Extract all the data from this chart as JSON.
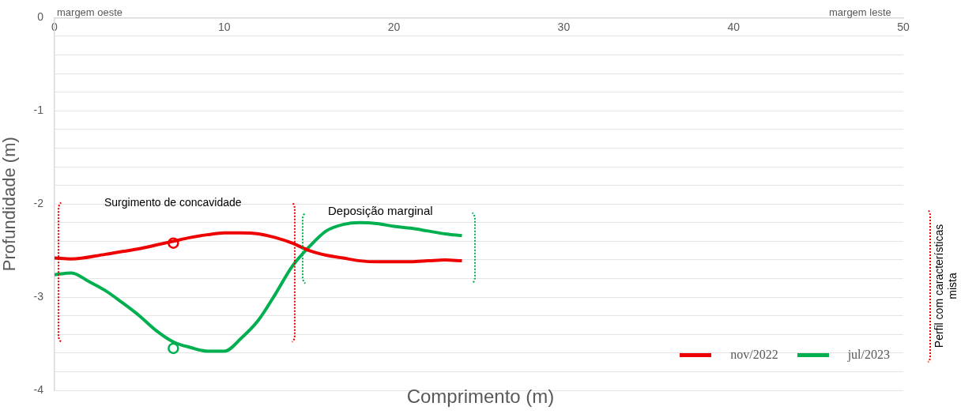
{
  "chart_data": {
    "type": "line",
    "xlabel": "Comprimento (m)",
    "ylabel": "Profundidade (m)",
    "xlim": [
      0,
      50
    ],
    "xticks": [
      0,
      10,
      20,
      30,
      40,
      50
    ],
    "ylim": [
      -4,
      0
    ],
    "yticks": [
      -4,
      {
        "value": -3.8,
        "label": null
      },
      {
        "value": -3.6,
        "label": null
      },
      {
        "value": -3.4,
        "label": null
      },
      {
        "value": -3.2,
        "label": null
      },
      -3,
      {
        "value": -2.8,
        "label": null
      },
      {
        "value": -2.6,
        "label": null
      },
      {
        "value": -2.4,
        "label": null
      },
      {
        "value": -2.2,
        "label": null
      },
      -2,
      {
        "value": -1.8,
        "label": null
      },
      {
        "value": -1.6,
        "label": null
      },
      {
        "value": -1.4,
        "label": null
      },
      {
        "value": -1.2,
        "label": null
      },
      -1,
      {
        "value": -0.8,
        "label": null
      },
      {
        "value": -0.6,
        "label": null
      },
      {
        "value": -0.4,
        "label": null
      },
      {
        "value": -0.2,
        "label": null
      },
      0
    ],
    "grid": "y",
    "legend": "bottom right",
    "line_style": "solid",
    "marker": "none",
    "series": [
      {
        "name": "nov/2022",
        "color": "#ee0000",
        "x": [
          0,
          1,
          3,
          4,
          5,
          6,
          7,
          8,
          9,
          10,
          11,
          12,
          13,
          14,
          15,
          16,
          17,
          18,
          19,
          20,
          21,
          22,
          23,
          24
        ],
        "values": [
          -2.58,
          -2.59,
          -2.54,
          -2.51,
          -2.48,
          -2.44,
          -2.4,
          -2.36,
          -2.33,
          -2.31,
          -2.31,
          -2.32,
          -2.36,
          -2.42,
          -2.5,
          -2.55,
          -2.58,
          -2.61,
          -2.62,
          -2.62,
          -2.62,
          -2.61,
          -2.6,
          -2.61
        ]
      },
      {
        "name": "jul/2023",
        "color": "#00b050",
        "x": [
          0,
          1,
          2,
          3,
          4,
          5,
          6,
          7,
          8,
          9,
          10,
          11,
          12,
          13,
          14,
          15,
          16,
          17,
          18,
          19,
          20,
          21,
          22,
          23,
          24
        ],
        "values": [
          -2.76,
          -2.74,
          -2.83,
          -2.93,
          -3.06,
          -3.2,
          -3.36,
          -3.48,
          -3.54,
          -3.58,
          -3.58,
          -3.44,
          -3.25,
          -2.97,
          -2.67,
          -2.46,
          -2.29,
          -2.22,
          -2.2,
          -2.21,
          -2.24,
          -2.26,
          -2.29,
          -2.32,
          -2.34
        ]
      },
      {
        "type": "scatter",
        "marker": "circle",
        "color": "#ee0000",
        "x": [
          7
        ],
        "values": [
          -2.42
        ]
      },
      {
        "type": "scatter",
        "marker": "circle",
        "color": "#00b050",
        "x": [
          7
        ],
        "values": [
          -3.55
        ]
      }
    ],
    "annotations": [
      "margem oeste",
      "margem leste",
      "Surgimento de concavidade",
      "Deposição marginal",
      "Perfil com características mista"
    ]
  }
}
